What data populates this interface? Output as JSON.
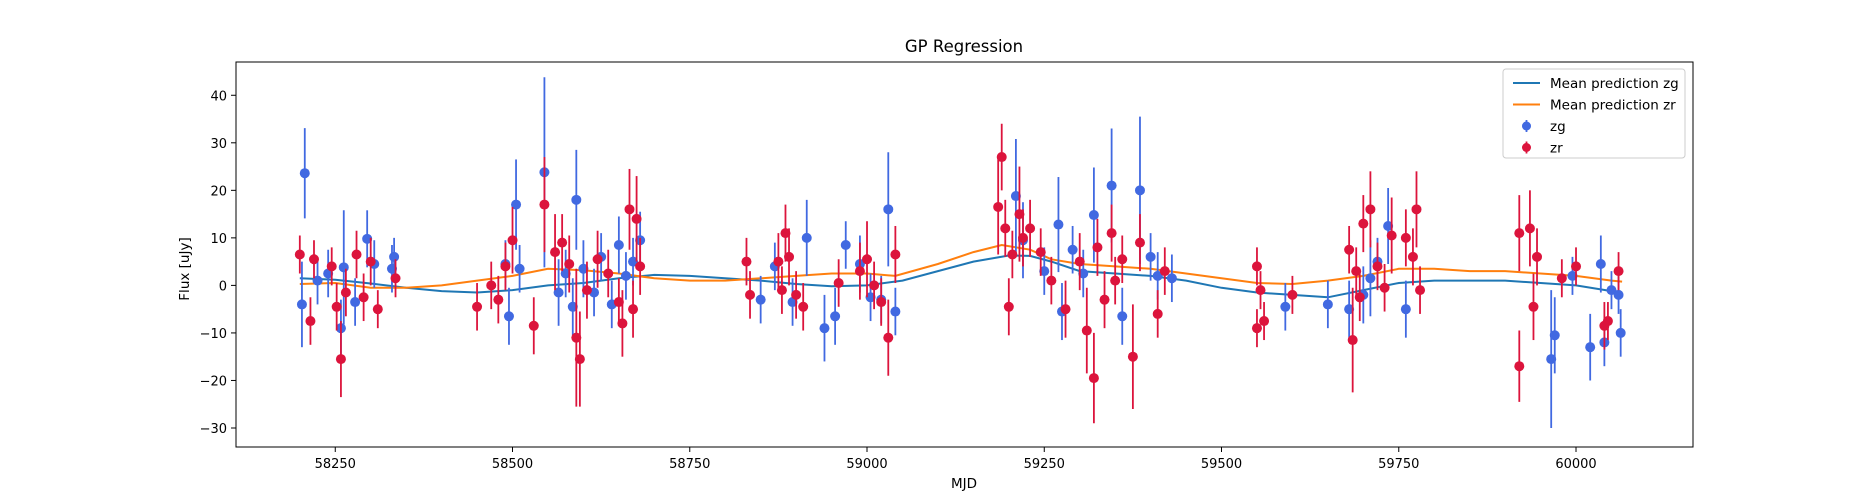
{
  "chart_data": {
    "type": "scatter",
    "title": "GP Regression",
    "xlabel": "MJD",
    "ylabel": "Flux [uJy]",
    "xlim": [
      58110,
      60165
    ],
    "ylim": [
      -34,
      47
    ],
    "xticks": [
      58250,
      58500,
      58750,
      59000,
      59250,
      59500,
      59750,
      60000
    ],
    "yticks": [
      -30,
      -20,
      -10,
      0,
      10,
      20,
      30,
      40
    ],
    "grid": false,
    "legend_position": "top-right",
    "legend": [
      {
        "label": "Mean prediction zg",
        "kind": "line",
        "color": "#1f77b4"
      },
      {
        "label": "Mean prediction zr",
        "kind": "line",
        "color": "#ff7f0e"
      },
      {
        "label": "zg",
        "kind": "marker",
        "color": "#4169e1"
      },
      {
        "label": "zr",
        "kind": "marker",
        "color": "#dc143c"
      }
    ],
    "series": [
      {
        "name": "Mean prediction zg",
        "kind": "line",
        "color": "#1f77b4",
        "points": [
          [
            58200,
            1.5
          ],
          [
            58250,
            1.2
          ],
          [
            58300,
            0.4
          ],
          [
            58350,
            -0.5
          ],
          [
            58400,
            -1.2
          ],
          [
            58450,
            -1.5
          ],
          [
            58500,
            -1.0
          ],
          [
            58550,
            0.0
          ],
          [
            58600,
            0.5
          ],
          [
            58650,
            1.5
          ],
          [
            58700,
            2.2
          ],
          [
            58750,
            2.0
          ],
          [
            58800,
            1.5
          ],
          [
            58850,
            1.0
          ],
          [
            58900,
            0.3
          ],
          [
            58950,
            -0.2
          ],
          [
            59000,
            0.0
          ],
          [
            59050,
            1.0
          ],
          [
            59100,
            3.0
          ],
          [
            59150,
            5.0
          ],
          [
            59200,
            6.3
          ],
          [
            59230,
            6.2
          ],
          [
            59260,
            5.0
          ],
          [
            59300,
            3.0
          ],
          [
            59350,
            2.5
          ],
          [
            59400,
            2.0
          ],
          [
            59450,
            1.0
          ],
          [
            59500,
            -0.5
          ],
          [
            59550,
            -1.5
          ],
          [
            59600,
            -2.0
          ],
          [
            59650,
            -2.5
          ],
          [
            59700,
            -1.0
          ],
          [
            59750,
            0.5
          ],
          [
            59800,
            1.0
          ],
          [
            59850,
            1.0
          ],
          [
            59900,
            1.0
          ],
          [
            59950,
            0.5
          ],
          [
            60000,
            0.0
          ],
          [
            60050,
            -1.2
          ],
          [
            60065,
            -1.5
          ]
        ]
      },
      {
        "name": "Mean prediction zr",
        "kind": "line",
        "color": "#ff7f0e",
        "points": [
          [
            58200,
            0.3
          ],
          [
            58250,
            0.5
          ],
          [
            58300,
            -0.5
          ],
          [
            58350,
            -0.5
          ],
          [
            58400,
            0.0
          ],
          [
            58450,
            1.0
          ],
          [
            58500,
            2.0
          ],
          [
            58550,
            3.5
          ],
          [
            58600,
            3.2
          ],
          [
            58650,
            2.5
          ],
          [
            58700,
            1.5
          ],
          [
            58750,
            1.0
          ],
          [
            58800,
            1.0
          ],
          [
            58850,
            1.5
          ],
          [
            58900,
            2.0
          ],
          [
            58950,
            2.5
          ],
          [
            59000,
            2.5
          ],
          [
            59040,
            2.0
          ],
          [
            59100,
            4.5
          ],
          [
            59150,
            7.0
          ],
          [
            59190,
            8.5
          ],
          [
            59230,
            7.5
          ],
          [
            59260,
            5.5
          ],
          [
            59300,
            4.5
          ],
          [
            59350,
            4.0
          ],
          [
            59400,
            3.5
          ],
          [
            59450,
            2.5
          ],
          [
            59500,
            1.5
          ],
          [
            59550,
            0.5
          ],
          [
            59600,
            0.3
          ],
          [
            59650,
            1.0
          ],
          [
            59700,
            2.0
          ],
          [
            59750,
            3.5
          ],
          [
            59800,
            3.5
          ],
          [
            59850,
            3.0
          ],
          [
            59900,
            3.0
          ],
          [
            59950,
            2.5
          ],
          [
            60000,
            2.0
          ],
          [
            60050,
            1.0
          ],
          [
            60065,
            0.8
          ]
        ]
      },
      {
        "name": "zg",
        "kind": "errorbar",
        "color": "#4169e1",
        "points": [
          [
            58203,
            -4.0,
            9.0
          ],
          [
            58207,
            23.6,
            9.5
          ],
          [
            58225,
            1.0,
            5.0
          ],
          [
            58240,
            2.5,
            5.0
          ],
          [
            58258,
            -9.0,
            6.0
          ],
          [
            58262,
            3.8,
            12.0
          ],
          [
            58278,
            -3.5,
            5.0
          ],
          [
            58295,
            9.8,
            6.0
          ],
          [
            58305,
            4.5,
            5.0
          ],
          [
            58330,
            3.5,
            5.0
          ],
          [
            58333,
            6.0,
            4.0
          ],
          [
            58490,
            4.5,
            5.0
          ],
          [
            58495,
            -6.5,
            6.0
          ],
          [
            58505,
            17.0,
            9.5
          ],
          [
            58510,
            3.5,
            5.0
          ],
          [
            58545,
            23.8,
            20.0
          ],
          [
            58565,
            -1.5,
            7.0
          ],
          [
            58575,
            2.5,
            5.0
          ],
          [
            58585,
            -4.5,
            6.0
          ],
          [
            58590,
            18.0,
            10.5
          ],
          [
            58600,
            3.5,
            6.0
          ],
          [
            58615,
            -1.5,
            5.0
          ],
          [
            58625,
            6.0,
            5.0
          ],
          [
            58640,
            -4.0,
            5.0
          ],
          [
            58650,
            8.5,
            6.0
          ],
          [
            58660,
            2.0,
            5.0
          ],
          [
            58670,
            5.0,
            5.0
          ],
          [
            58680,
            9.5,
            6.0
          ],
          [
            58850,
            -3.0,
            5.0
          ],
          [
            58870,
            4.0,
            5.0
          ],
          [
            58895,
            -3.5,
            5.0
          ],
          [
            58915,
            10.0,
            8.0
          ],
          [
            58940,
            -9.0,
            7.0
          ],
          [
            58955,
            -6.5,
            6.0
          ],
          [
            58970,
            8.5,
            5.0
          ],
          [
            58990,
            4.5,
            6.0
          ],
          [
            59005,
            -2.5,
            5.0
          ],
          [
            59020,
            -3.0,
            5.0
          ],
          [
            59030,
            16.0,
            12.0
          ],
          [
            59040,
            -5.5,
            5.0
          ],
          [
            59210,
            18.8,
            12.0
          ],
          [
            59220,
            9.5,
            8.0
          ],
          [
            59250,
            3.0,
            5.0
          ],
          [
            59270,
            12.8,
            10.0
          ],
          [
            59275,
            -5.5,
            6.0
          ],
          [
            59290,
            7.5,
            5.0
          ],
          [
            59305,
            2.5,
            5.0
          ],
          [
            59320,
            14.8,
            10.0
          ],
          [
            59345,
            21.0,
            12.0
          ],
          [
            59360,
            -6.5,
            6.0
          ],
          [
            59385,
            20.0,
            15.5
          ],
          [
            59400,
            6.0,
            5.0
          ],
          [
            59410,
            2.0,
            5.0
          ],
          [
            59430,
            1.5,
            5.0
          ],
          [
            59590,
            -4.5,
            5.0
          ],
          [
            59650,
            -4.0,
            5.0
          ],
          [
            59680,
            -5.0,
            6.0
          ],
          [
            59700,
            -2.0,
            6.0
          ],
          [
            59710,
            1.5,
            8.0
          ],
          [
            59720,
            5.0,
            5.0
          ],
          [
            59735,
            12.5,
            8.0
          ],
          [
            59760,
            -5.0,
            6.0
          ],
          [
            59965,
            -15.5,
            14.5
          ],
          [
            59970,
            -10.5,
            8.0
          ],
          [
            59995,
            2.0,
            4.0
          ],
          [
            60020,
            -13.0,
            7.0
          ],
          [
            60035,
            4.5,
            6.0
          ],
          [
            60040,
            -12.0,
            5.0
          ],
          [
            60050,
            -1.0,
            4.0
          ],
          [
            60060,
            -2.0,
            4.0
          ],
          [
            60063,
            -10.0,
            5.0
          ]
        ]
      },
      {
        "name": "zr",
        "kind": "errorbar",
        "color": "#dc143c",
        "points": [
          [
            58200,
            6.5,
            4.0
          ],
          [
            58215,
            -7.5,
            5.0
          ],
          [
            58220,
            5.5,
            4.0
          ],
          [
            58245,
            4.0,
            4.0
          ],
          [
            58252,
            -4.5,
            5.0
          ],
          [
            58258,
            -15.5,
            8.0
          ],
          [
            58265,
            -1.5,
            5.0
          ],
          [
            58280,
            6.5,
            5.0
          ],
          [
            58290,
            -2.5,
            5.0
          ],
          [
            58300,
            5.0,
            5.0
          ],
          [
            58310,
            -5.0,
            4.0
          ],
          [
            58335,
            1.5,
            4.0
          ],
          [
            58450,
            -4.5,
            5.0
          ],
          [
            58470,
            0.0,
            5.0
          ],
          [
            58480,
            -3.0,
            5.0
          ],
          [
            58490,
            4.0,
            5.0
          ],
          [
            58500,
            9.5,
            7.0
          ],
          [
            58530,
            -8.5,
            6.0
          ],
          [
            58545,
            17.0,
            10.0
          ],
          [
            58560,
            7.0,
            8.0
          ],
          [
            58570,
            9.0,
            6.0
          ],
          [
            58580,
            4.5,
            6.0
          ],
          [
            58590,
            -11.0,
            14.5
          ],
          [
            58595,
            -15.5,
            10.0
          ],
          [
            58605,
            -1.0,
            6.0
          ],
          [
            58620,
            5.5,
            6.0
          ],
          [
            58635,
            2.5,
            5.0
          ],
          [
            58650,
            -3.5,
            5.0
          ],
          [
            58655,
            -8.0,
            7.0
          ],
          [
            58665,
            16.0,
            8.5
          ],
          [
            58670,
            -5.0,
            6.0
          ],
          [
            58675,
            14.0,
            9.0
          ],
          [
            58680,
            4.0,
            6.0
          ],
          [
            58830,
            5.0,
            5.0
          ],
          [
            58835,
            -2.0,
            5.0
          ],
          [
            58875,
            5.0,
            6.0
          ],
          [
            58880,
            -1.0,
            5.0
          ],
          [
            58885,
            11.0,
            6.0
          ],
          [
            58890,
            6.0,
            6.0
          ],
          [
            58900,
            -2.0,
            5.0
          ],
          [
            58910,
            -4.5,
            5.0
          ],
          [
            58960,
            0.5,
            5.0
          ],
          [
            58990,
            3.0,
            6.0
          ],
          [
            59000,
            5.5,
            8.0
          ],
          [
            59010,
            0.0,
            5.0
          ],
          [
            59020,
            -3.5,
            5.0
          ],
          [
            59030,
            -11.0,
            8.0
          ],
          [
            59040,
            6.5,
            6.0
          ],
          [
            59185,
            16.5,
            10.0
          ],
          [
            59190,
            27.0,
            7.0
          ],
          [
            59195,
            12.0,
            6.0
          ],
          [
            59200,
            -4.5,
            6.0
          ],
          [
            59205,
            6.5,
            5.0
          ],
          [
            59215,
            15.0,
            10.0
          ],
          [
            59220,
            10.0,
            6.0
          ],
          [
            59230,
            12.0,
            6.0
          ],
          [
            59245,
            7.0,
            5.0
          ],
          [
            59260,
            1.0,
            5.0
          ],
          [
            59280,
            -5.0,
            6.0
          ],
          [
            59300,
            5.0,
            6.0
          ],
          [
            59310,
            -9.5,
            9.0
          ],
          [
            59320,
            -19.5,
            9.5
          ],
          [
            59325,
            8.0,
            6.0
          ],
          [
            59335,
            -3.0,
            6.0
          ],
          [
            59345,
            11.0,
            6.0
          ],
          [
            59350,
            1.0,
            5.0
          ],
          [
            59360,
            5.5,
            5.0
          ],
          [
            59375,
            -15.0,
            11.0
          ],
          [
            59385,
            9.0,
            6.0
          ],
          [
            59410,
            -6.0,
            5.0
          ],
          [
            59420,
            3.0,
            5.0
          ],
          [
            59550,
            -9.0,
            4.0
          ],
          [
            59550,
            4.0,
            4.0
          ],
          [
            59555,
            -1.0,
            4.0
          ],
          [
            59560,
            -7.5,
            4.0
          ],
          [
            59600,
            -2.0,
            4.0
          ],
          [
            59680,
            7.5,
            5.0
          ],
          [
            59685,
            -11.5,
            11.0
          ],
          [
            59690,
            3.0,
            5.0
          ],
          [
            59695,
            -2.5,
            5.0
          ],
          [
            59700,
            13.0,
            6.0
          ],
          [
            59710,
            16.0,
            8.0
          ],
          [
            59720,
            4.0,
            5.0
          ],
          [
            59730,
            -0.5,
            5.0
          ],
          [
            59740,
            10.5,
            8.0
          ],
          [
            59760,
            10.0,
            6.0
          ],
          [
            59770,
            6.0,
            6.0
          ],
          [
            59775,
            16.0,
            8.0
          ],
          [
            59780,
            -1.0,
            5.0
          ],
          [
            59920,
            11.0,
            8.0
          ],
          [
            59920,
            -17.0,
            7.5
          ],
          [
            59935,
            12.0,
            8.0
          ],
          [
            59940,
            -4.5,
            7.0
          ],
          [
            59945,
            6.0,
            6.0
          ],
          [
            59980,
            1.5,
            4.0
          ],
          [
            60000,
            4.0,
            4.0
          ],
          [
            60040,
            -8.5,
            5.0
          ],
          [
            60045,
            -7.5,
            4.0
          ],
          [
            60060,
            3.0,
            4.0
          ]
        ]
      }
    ]
  }
}
